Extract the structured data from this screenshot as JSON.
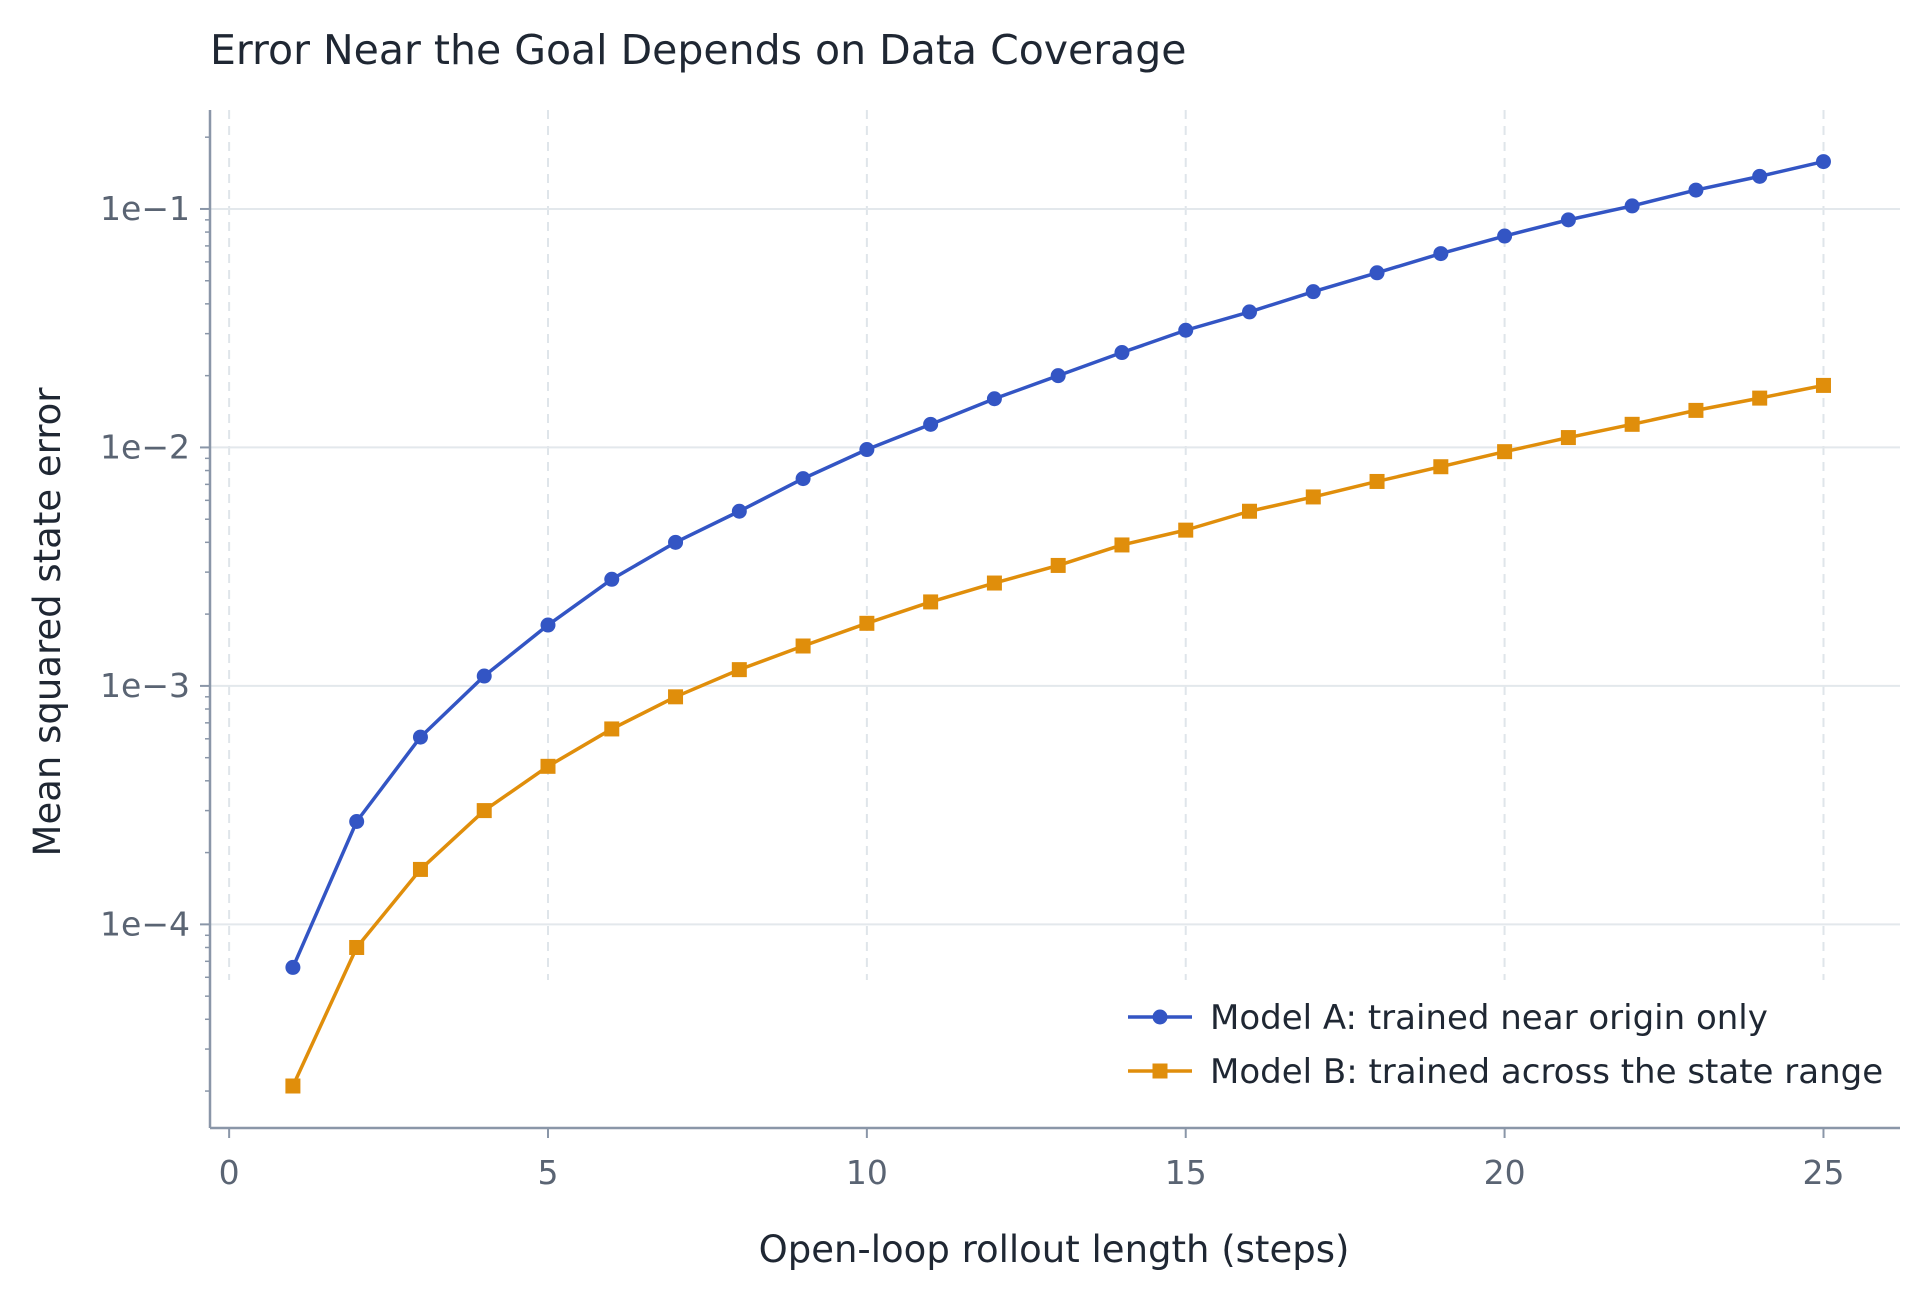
{
  "chart_data": {
    "type": "line",
    "title": "Error Near the Goal Depends on Data Coverage",
    "xlabel": "Open-loop rollout length (steps)",
    "ylabel": "Mean squared state error",
    "yscale": "log",
    "xlim": [
      -0.3,
      26.2
    ],
    "ylim": [
      1.4e-05,
      0.26
    ],
    "x_ticks": [
      0,
      5,
      10,
      15,
      20,
      25
    ],
    "x_tick_labels": [
      "0",
      "5",
      "10",
      "15",
      "20",
      "25"
    ],
    "y_ticks": [
      0.0001,
      0.001,
      0.01,
      0.1
    ],
    "y_tick_labels": [
      "1e−4",
      "1e−3",
      "1e−2",
      "1e−1"
    ],
    "grid": true,
    "legend_position": "lower-right",
    "x": [
      1,
      2,
      3,
      4,
      5,
      6,
      7,
      8,
      9,
      10,
      11,
      12,
      13,
      14,
      15,
      16,
      17,
      18,
      19,
      20,
      21,
      22,
      23,
      24,
      25
    ],
    "series": [
      {
        "name": "Model A: trained near origin only",
        "color": "#3355c4",
        "marker": "circle",
        "values": [
          6.6e-05,
          0.00027,
          0.00061,
          0.0011,
          0.0018,
          0.0028,
          0.004,
          0.0054,
          0.0074,
          0.0098,
          0.0125,
          0.016,
          0.02,
          0.025,
          0.031,
          0.037,
          0.045,
          0.054,
          0.065,
          0.077,
          0.09,
          0.103,
          0.12,
          0.137,
          0.158
        ]
      },
      {
        "name": "Model B: trained across the state range",
        "color": "#e08e0b",
        "marker": "square",
        "values": [
          2.1e-05,
          8e-05,
          0.00017,
          0.0003,
          0.00046,
          0.00066,
          0.0009,
          0.00117,
          0.00147,
          0.00183,
          0.00225,
          0.0027,
          0.0032,
          0.0039,
          0.0045,
          0.0054,
          0.0062,
          0.0072,
          0.0083,
          0.0096,
          0.011,
          0.0125,
          0.0143,
          0.0161,
          0.0182
        ]
      }
    ]
  }
}
